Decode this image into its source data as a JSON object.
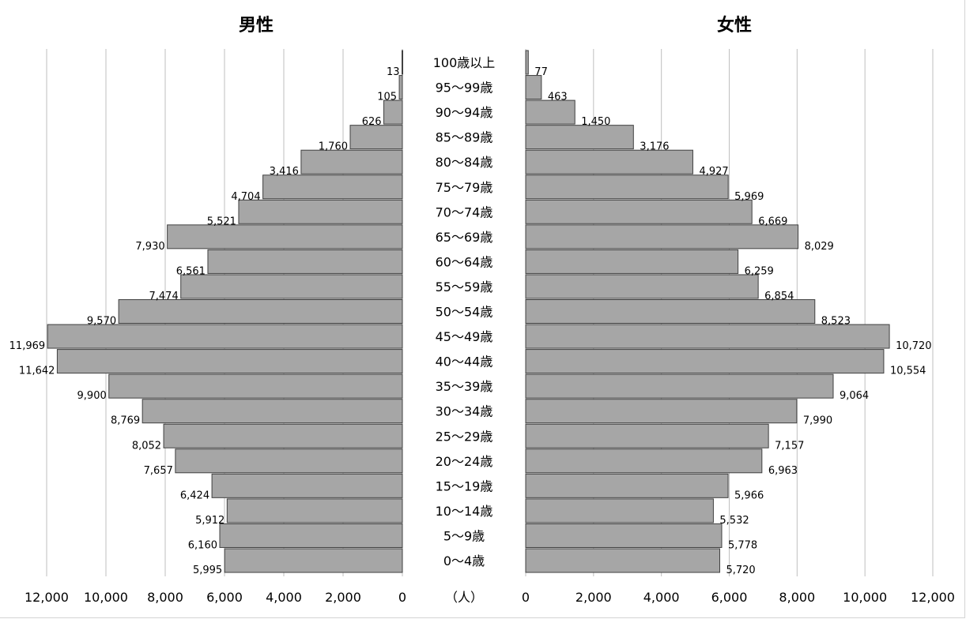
{
  "chart_data": {
    "type": "bar",
    "orientation": "horizontal",
    "layout": "population-pyramid",
    "left_title": "男性",
    "right_title": "女性",
    "unit_label": "（人）",
    "grid": true,
    "xlim": [
      0,
      12000
    ],
    "x_ticks": [
      "12,000",
      "10,000",
      "8,000",
      "6,000",
      "4,000",
      "2,000",
      "0"
    ],
    "x_ticks_right": [
      "0",
      "2,000",
      "4,000",
      "6,000",
      "8,000",
      "10,000",
      "12,000"
    ],
    "bar_color": "#a6a6a6",
    "categories": [
      "100歳以上",
      "95〜99歳",
      "90〜94歳",
      "85〜89歳",
      "80〜84歳",
      "75〜79歳",
      "70〜74歳",
      "65〜69歳",
      "60〜64歳",
      "55〜59歳",
      "50〜54歳",
      "45〜49歳",
      "40〜44歳",
      "35〜39歳",
      "30〜34歳",
      "25〜29歳",
      "20〜24歳",
      "15〜19歳",
      "10〜14歳",
      "5〜9歳",
      "0〜4歳"
    ],
    "series": [
      {
        "name": "男性",
        "values": [
          13,
          105,
          626,
          1760,
          3416,
          4704,
          5521,
          7930,
          6561,
          7474,
          9570,
          11969,
          11642,
          9900,
          8769,
          8052,
          7657,
          6424,
          5912,
          6160,
          5995
        ],
        "labels": [
          "13",
          "105",
          "626",
          "1,760",
          "3,416",
          "4,704",
          "5,521",
          "7,930",
          "6,561",
          "7,474",
          "9,570",
          "11,969",
          "11,642",
          "9,900",
          "8,769",
          "8,052",
          "7,657",
          "6,424",
          "5,912",
          "6,160",
          "5,995"
        ]
      },
      {
        "name": "女性",
        "values": [
          77,
          463,
          1450,
          3176,
          4927,
          5969,
          6669,
          8029,
          6259,
          6854,
          8523,
          10720,
          10554,
          9064,
          7990,
          7157,
          6963,
          5966,
          5532,
          5778,
          5720
        ],
        "labels": [
          "77",
          "463",
          "1,450",
          "3,176",
          "4,927",
          "5,969",
          "6,669",
          "8,029",
          "6,259",
          "6,854",
          "8,523",
          "10,720",
          "10,554",
          "9,064",
          "7,990",
          "7,157",
          "6,963",
          "5,966",
          "5,532",
          "5,778",
          "5,720"
        ]
      }
    ]
  }
}
